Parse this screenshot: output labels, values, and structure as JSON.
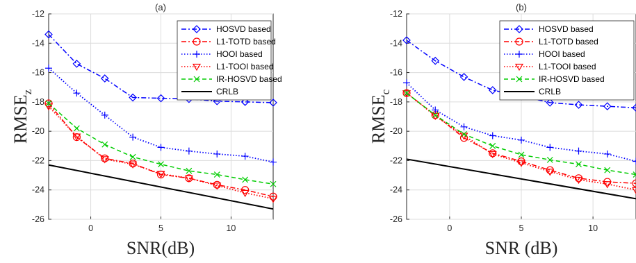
{
  "chart_data": [
    {
      "type": "line",
      "title": "(a)",
      "xlabel": "SNR(dB)",
      "ylabel": "RMSE",
      "ylabel_sub": "z",
      "xlim": [
        -3,
        13
      ],
      "ylim": [
        -26,
        -12
      ],
      "xticks": [
        0,
        5,
        10
      ],
      "yticks": [
        -26,
        -24,
        -22,
        -20,
        -18,
        -16,
        -14,
        -12
      ],
      "grid": true,
      "legend_position": "top-right",
      "x": [
        -3,
        -1,
        1,
        3,
        5,
        7,
        9,
        11,
        13
      ],
      "series": [
        {
          "name": "HOSVD based",
          "color": "#0000ff",
          "dash": "dashdot",
          "marker": "diamond",
          "values": [
            -13.4,
            -15.4,
            -16.4,
            -17.7,
            -17.75,
            -17.8,
            -17.95,
            -18.0,
            -18.05
          ]
        },
        {
          "name": "L1-TOTD based",
          "color": "#ff0000",
          "dash": "dashdot",
          "marker": "circle",
          "values": [
            -18.1,
            -20.4,
            -21.85,
            -22.2,
            -22.95,
            -23.2,
            -23.65,
            -24.0,
            -24.45
          ]
        },
        {
          "name": "HOOI based",
          "color": "#0000ff",
          "dash": "dotted",
          "marker": "plus",
          "values": [
            -15.7,
            -17.4,
            -18.9,
            -20.4,
            -21.1,
            -21.35,
            -21.55,
            -21.7,
            -22.1
          ]
        },
        {
          "name": "L1-TOOI based",
          "color": "#ff0000",
          "dash": "dotted",
          "marker": "triangle-down",
          "values": [
            -18.3,
            -20.35,
            -21.9,
            -22.25,
            -22.9,
            -23.2,
            -23.7,
            -24.2,
            -24.6
          ]
        },
        {
          "name": "IR-HOSVD based",
          "color": "#00cc00",
          "dash": "dashed",
          "marker": "x",
          "values": [
            -18.1,
            -19.8,
            -20.9,
            -21.75,
            -22.25,
            -22.7,
            -22.95,
            -23.3,
            -23.6
          ]
        },
        {
          "name": "CRLB",
          "color": "#000000",
          "dash": "solid",
          "marker": "none",
          "x": [
            -3,
            13
          ],
          "values": [
            -22.3,
            -25.3
          ]
        }
      ]
    },
    {
      "type": "line",
      "title": "(b)",
      "xlabel": "SNR (dB)",
      "ylabel": "RMSE",
      "ylabel_sub": "c",
      "xlim": [
        -3,
        13
      ],
      "ylim": [
        -26,
        -12
      ],
      "xticks": [
        0,
        5,
        10
      ],
      "yticks": [
        -26,
        -24,
        -22,
        -20,
        -18,
        -16,
        -14,
        -12
      ],
      "grid": true,
      "legend_position": "top-right",
      "x": [
        -3,
        -1,
        1,
        3,
        5,
        7,
        9,
        11,
        13
      ],
      "series": [
        {
          "name": "HOSVD based",
          "color": "#0000ff",
          "dash": "dashdot",
          "marker": "diamond",
          "values": [
            -13.8,
            -15.2,
            -16.3,
            -17.2,
            -17.6,
            -18.05,
            -18.2,
            -18.3,
            -18.4
          ]
        },
        {
          "name": "L1-TOTD based",
          "color": "#ff0000",
          "dash": "dashdot",
          "marker": "circle",
          "values": [
            -17.4,
            -18.9,
            -20.45,
            -21.5,
            -22.05,
            -22.65,
            -23.2,
            -23.45,
            -23.55
          ]
        },
        {
          "name": "HOOI based",
          "color": "#0000ff",
          "dash": "dotted",
          "marker": "plus",
          "values": [
            -16.7,
            -18.55,
            -19.7,
            -20.3,
            -20.6,
            -21.1,
            -21.35,
            -21.55,
            -22.05
          ]
        },
        {
          "name": "L1-TOOI based",
          "color": "#ff0000",
          "dash": "dotted",
          "marker": "triangle-down",
          "values": [
            -17.4,
            -18.95,
            -20.3,
            -21.55,
            -22.15,
            -22.75,
            -23.3,
            -23.6,
            -24.0
          ]
        },
        {
          "name": "IR-HOSVD based",
          "color": "#00cc00",
          "dash": "dashed",
          "marker": "x",
          "values": [
            -17.4,
            -18.9,
            -20.2,
            -21.0,
            -21.6,
            -21.95,
            -22.25,
            -22.65,
            -22.95
          ]
        },
        {
          "name": "CRLB",
          "color": "#000000",
          "dash": "solid",
          "marker": "none",
          "x": [
            -3,
            13
          ],
          "values": [
            -21.9,
            -24.6
          ]
        }
      ]
    }
  ]
}
